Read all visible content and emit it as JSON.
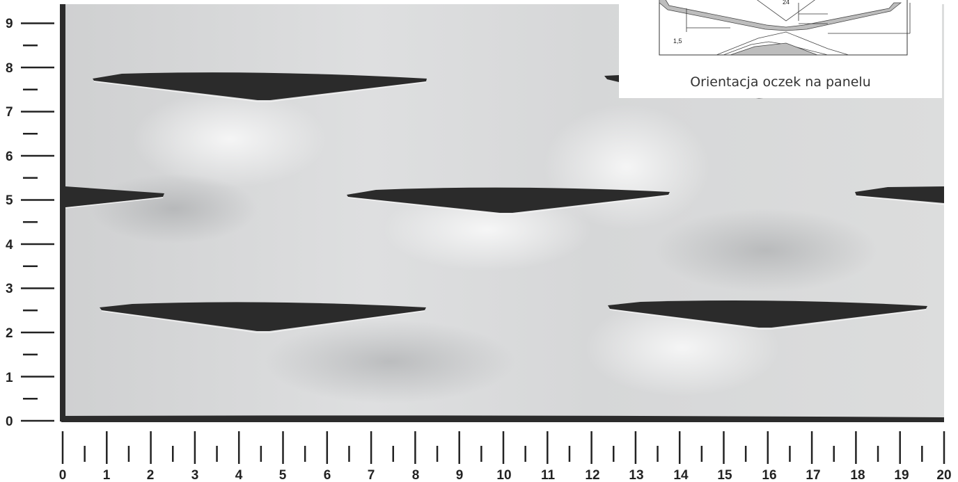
{
  "photo": {
    "description_free": true,
    "sheet_color": "#d9dadb",
    "hole_color": "#2b2b2b"
  },
  "y_axis": {
    "labels": [
      "0",
      "1",
      "2",
      "3",
      "4",
      "5",
      "6",
      "7",
      "8",
      "9"
    ]
  },
  "x_axis": {
    "labels": [
      "0",
      "1",
      "2",
      "3",
      "4",
      "5",
      "6",
      "7",
      "8",
      "9",
      "10",
      "11",
      "12",
      "13",
      "14",
      "15",
      "16",
      "17",
      "18",
      "19",
      "20"
    ]
  },
  "inset": {
    "caption": "Orientacja oczek na panelu",
    "dim_top": "24",
    "dim_left": "1,5"
  }
}
